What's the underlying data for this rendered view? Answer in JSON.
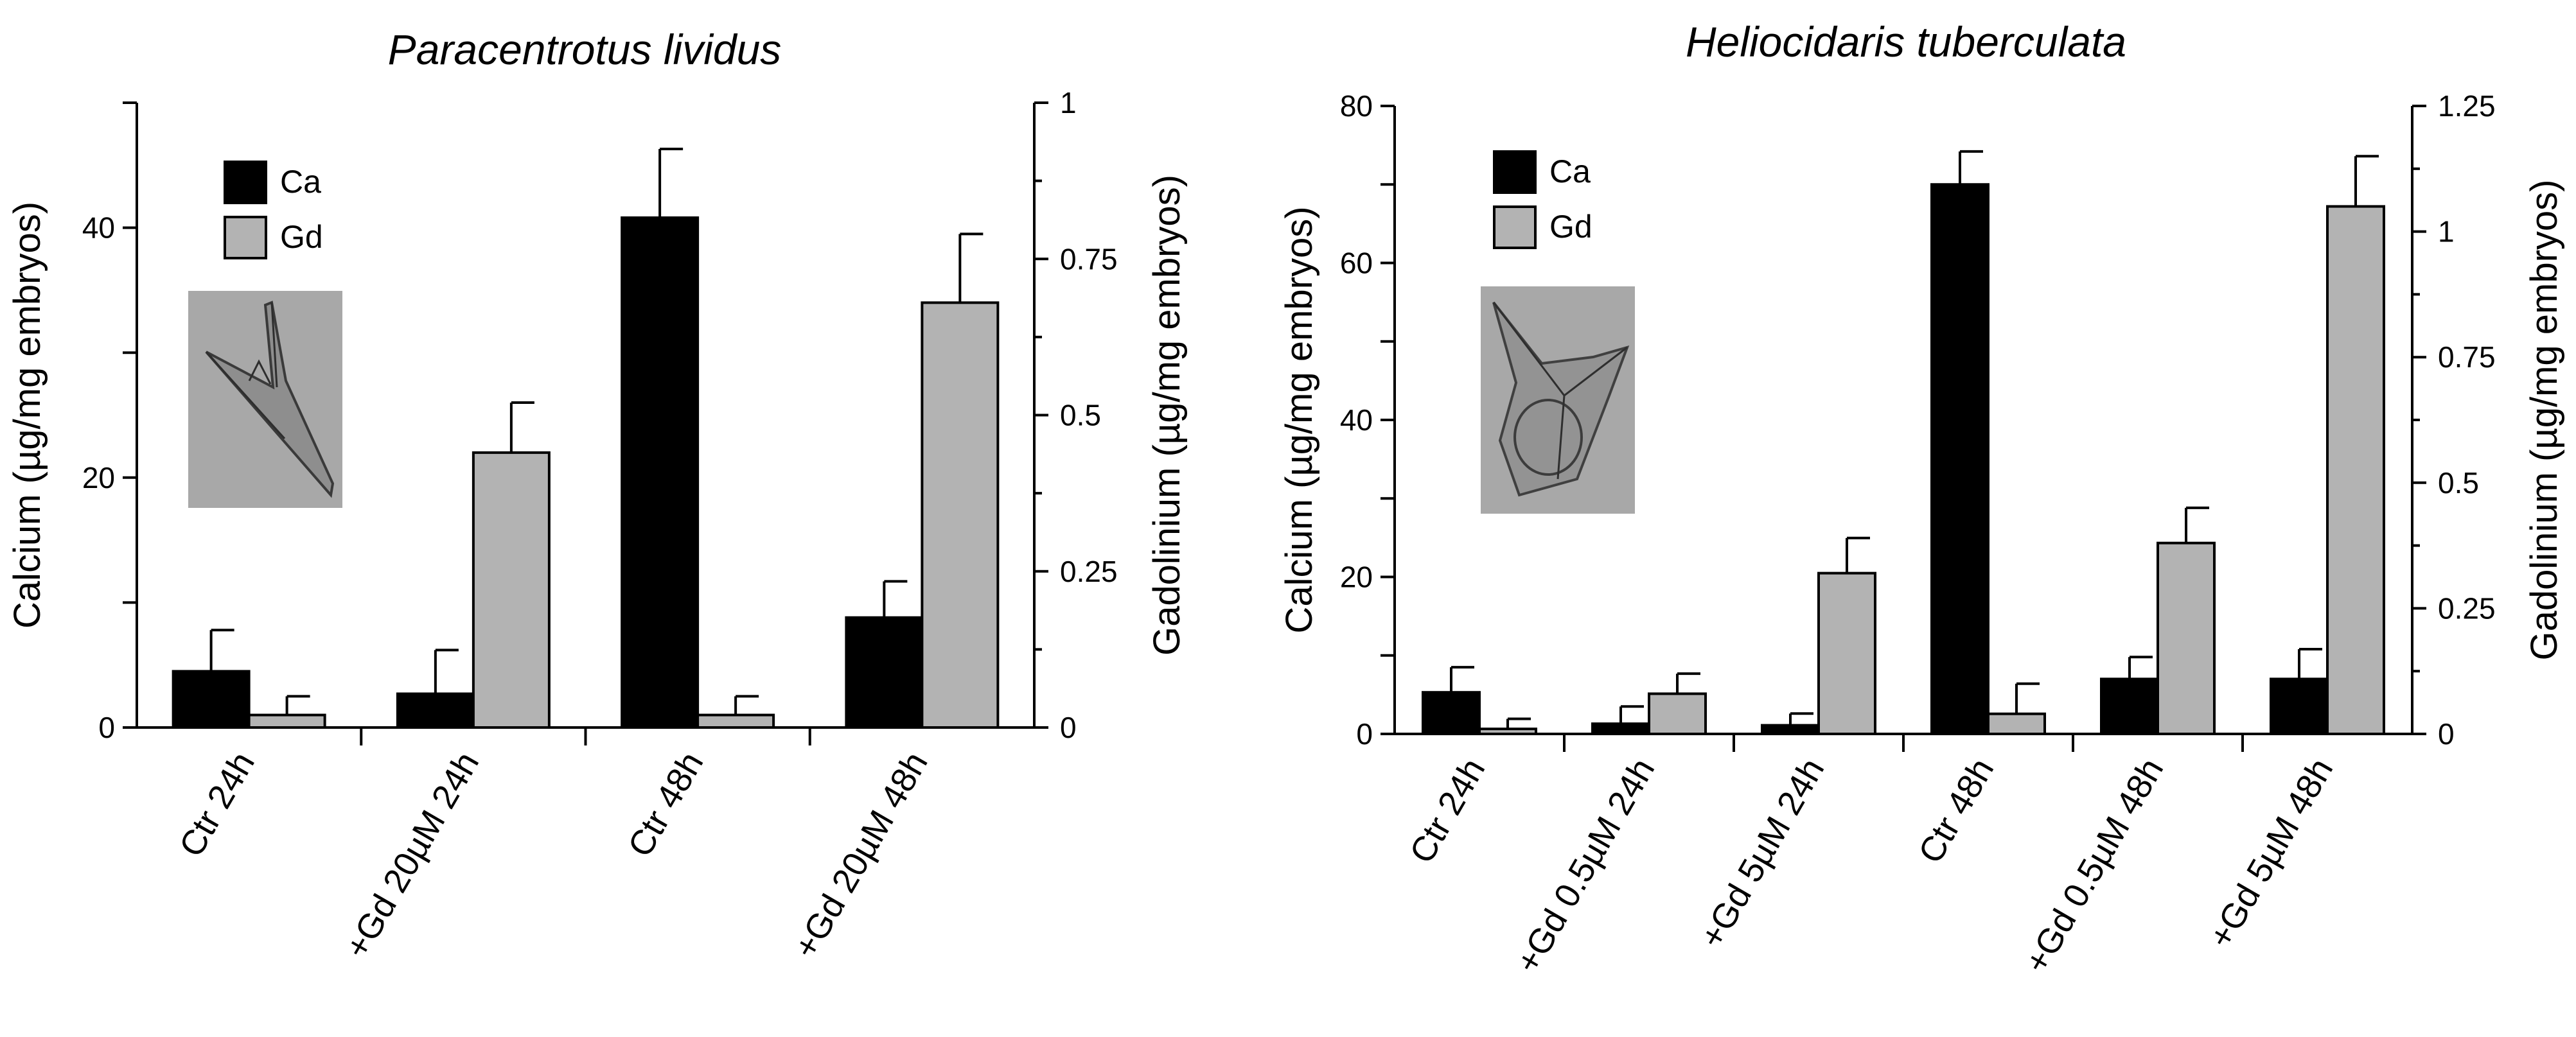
{
  "chart_data": [
    {
      "type": "bar",
      "title": "Paracentrotus lividus",
      "categories": [
        "Ctr 24h",
        "+Gd 20µM 24h",
        "Ctr 48h",
        "+Gd 20µM 48h"
      ],
      "series": [
        {
          "name": "Ca",
          "axis": "left",
          "color": "#000000",
          "values": [
            4.5,
            2.7,
            40.8,
            8.8
          ],
          "errors": [
            3.3,
            3.5,
            5.5,
            2.9
          ]
        },
        {
          "name": "Gd",
          "axis": "right",
          "color": "#b3b3b3",
          "values": [
            0.02,
            0.44,
            0.02,
            0.68
          ],
          "errors": [
            0.03,
            0.08,
            0.03,
            0.11
          ]
        }
      ],
      "ylabel": "Calcium (µg/mg embryos)",
      "ylabel_right": "Gadolinium (µg/mg embryos)",
      "ylim": [
        0,
        50
      ],
      "ylim_right": [
        0,
        1
      ],
      "yticks": [
        0,
        20,
        40
      ],
      "yticks_right": [
        "0",
        "0.25",
        "0.5",
        "0.75",
        "1"
      ],
      "legend": [
        "Ca",
        "Gd"
      ],
      "inset": "larva-photo"
    },
    {
      "type": "bar",
      "title": "Heliocidaris tuberculata",
      "categories": [
        "Ctr 24h",
        "+Gd 0.5µM 24h",
        "+Gd 5µM 24h",
        "Ctr 48h",
        "+Gd 0.5µM 48h",
        "+Gd 5µM 48h"
      ],
      "series": [
        {
          "name": "Ca",
          "axis": "left",
          "color": "#000000",
          "values": [
            5.3,
            1.3,
            1.1,
            70,
            7,
            7
          ],
          "errors": [
            3.2,
            2.2,
            1.5,
            4.2,
            2.8,
            3.8
          ]
        },
        {
          "name": "Gd",
          "axis": "right",
          "color": "#b3b3b3",
          "values": [
            0.01,
            0.08,
            0.32,
            0.04,
            0.38,
            1.05
          ],
          "errors": [
            0.02,
            0.04,
            0.07,
            0.06,
            0.07,
            0.1
          ]
        }
      ],
      "ylabel": "Calcium (µg/mg embryos)",
      "ylabel_right": "Gadolinium (µg/mg embryos)",
      "ylim": [
        0,
        80
      ],
      "ylim_right": [
        0,
        1.25
      ],
      "yticks": [
        0,
        20,
        40,
        60,
        80
      ],
      "yticks_right": [
        "0",
        "0.25",
        "0.5",
        "0.75",
        "1",
        "1.25"
      ],
      "legend": [
        "Ca",
        "Gd"
      ],
      "inset": "larva-photo"
    }
  ]
}
